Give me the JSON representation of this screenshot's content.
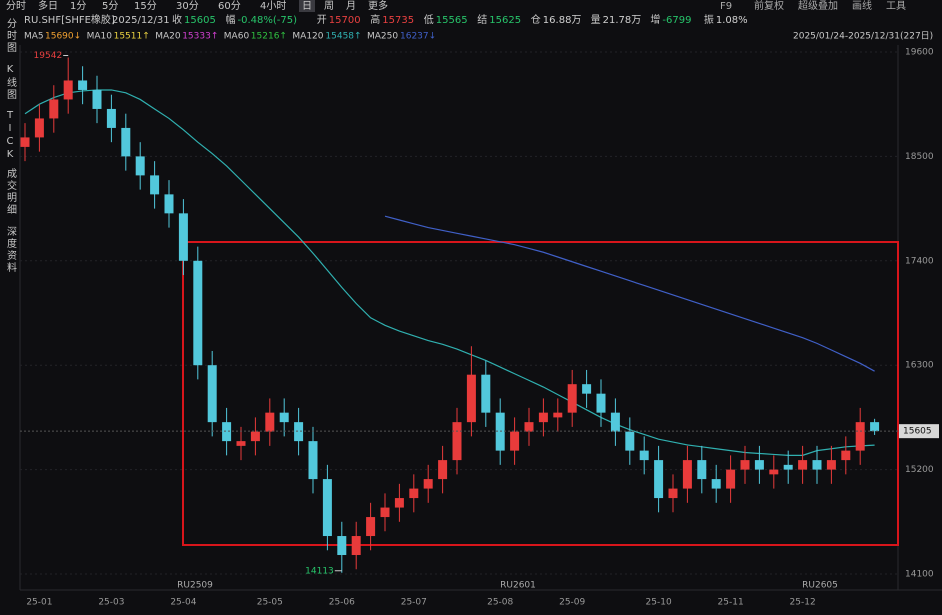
{
  "tabs": [
    "分时",
    "多日",
    "1分",
    "5分",
    "15分",
    "30分",
    "60分",
    "4小时",
    "日",
    "周",
    "月",
    "更多"
  ],
  "toolbar": [
    "F9",
    "前复权",
    "超级叠加",
    "画线",
    "工具"
  ],
  "sidebar": [
    "分时图",
    "K线图",
    "TICK",
    "成交明细",
    "深度资料"
  ],
  "header": {
    "symbol": "RU.SHF[SHFE橡胶]",
    "date": "2025/12/31",
    "quotes": [
      {
        "label": "收",
        "value": "15605",
        "color": "#27c46a"
      },
      {
        "label": "幅",
        "value": "-0.48%(-75)",
        "color": "#27c46a"
      },
      {
        "label": "开",
        "value": "15700",
        "color": "#e84040"
      },
      {
        "label": "高",
        "value": "15735",
        "color": "#e84040"
      },
      {
        "label": "低",
        "value": "15565",
        "color": "#27c46a"
      },
      {
        "label": "结",
        "value": "15625",
        "color": "#27c46a"
      },
      {
        "label": "仓",
        "value": "16.88万",
        "color": "#d0d0d0"
      },
      {
        "label": "量",
        "value": "21.78万",
        "color": "#d0d0d0"
      },
      {
        "label": "增",
        "value": "-6799",
        "color": "#27c46a"
      },
      {
        "label": "振",
        "value": "1.08%",
        "color": "#d0d0d0"
      }
    ]
  },
  "range_label": "2025/01/24-2025/12/31(227日)",
  "contracts": [
    "RU2509",
    "RU2601",
    "RU2605"
  ],
  "chart_data": {
    "type": "candlestick",
    "categories": [
      null,
      "25-01",
      null,
      null,
      null,
      null,
      "25-03",
      null,
      null,
      null,
      null,
      "25-04",
      null,
      null,
      null,
      null,
      null,
      "25-05",
      null,
      null,
      null,
      null,
      "25-06",
      null,
      null,
      null,
      null,
      "25-07",
      null,
      null,
      null,
      null,
      null,
      "25-08",
      null,
      null,
      null,
      null,
      "25-09",
      null,
      null,
      null,
      null,
      null,
      "25-10",
      null,
      null,
      null,
      null,
      "25-11",
      null,
      null,
      null,
      null,
      "25-12",
      null,
      null,
      null,
      null,
      null
    ],
    "open": [
      18600,
      18700,
      18900,
      19100,
      19300,
      19200,
      19000,
      18800,
      18500,
      18300,
      18100,
      17900,
      17400,
      16300,
      15700,
      15450,
      15500,
      15600,
      15800,
      15700,
      15500,
      15100,
      14500,
      14300,
      14500,
      14700,
      14800,
      14900,
      15000,
      15100,
      15300,
      15700,
      16200,
      15800,
      15400,
      15600,
      15700,
      15750,
      15800,
      16100,
      16000,
      15800,
      15600,
      15400,
      15300,
      14900,
      15000,
      15300,
      15100,
      15000,
      15200,
      15300,
      15150,
      15250,
      15200,
      15300,
      15200,
      15300,
      15400,
      15700
    ],
    "high": [
      18850,
      19050,
      19250,
      19542,
      19450,
      19350,
      19150,
      18950,
      18650,
      18450,
      18250,
      18050,
      17550,
      16450,
      15850,
      15650,
      15750,
      15950,
      15950,
      15850,
      15650,
      15250,
      14650,
      14650,
      14850,
      14950,
      15050,
      15150,
      15250,
      15450,
      15850,
      16500,
      16350,
      15950,
      15750,
      15850,
      15950,
      15950,
      16250,
      16250,
      16150,
      15950,
      15750,
      15550,
      15450,
      15150,
      15450,
      15450,
      15250,
      15350,
      15450,
      15450,
      15350,
      15400,
      15450,
      15450,
      15450,
      15550,
      15850,
      15735
    ],
    "low": [
      18450,
      18550,
      18750,
      18950,
      19050,
      18850,
      18650,
      18350,
      18150,
      17950,
      17750,
      17250,
      16150,
      15550,
      15350,
      15300,
      15350,
      15450,
      15550,
      15350,
      14950,
      14350,
      14113,
      14150,
      14350,
      14550,
      14650,
      14750,
      14850,
      14950,
      15150,
      15550,
      15650,
      15250,
      15250,
      15450,
      15550,
      15600,
      15650,
      15850,
      15650,
      15450,
      15250,
      15150,
      14750,
      14750,
      14850,
      14950,
      14850,
      14850,
      15050,
      15050,
      15000,
      15050,
      15050,
      15050,
      15050,
      15150,
      15250,
      15565
    ],
    "close": [
      18700,
      18900,
      19100,
      19300,
      19200,
      19000,
      18800,
      18500,
      18300,
      18100,
      17900,
      17400,
      16300,
      15700,
      15500,
      15500,
      15600,
      15800,
      15700,
      15500,
      15100,
      14500,
      14300,
      14500,
      14700,
      14800,
      14900,
      15000,
      15100,
      15300,
      15700,
      16200,
      15800,
      15400,
      15600,
      15700,
      15800,
      15800,
      16100,
      16000,
      15800,
      15600,
      15400,
      15300,
      14900,
      15000,
      15300,
      15100,
      15000,
      15200,
      15300,
      15200,
      15200,
      15200,
      15300,
      15200,
      15300,
      15400,
      15700,
      15605
    ],
    "up_color": "#e83b3b",
    "down_color": "#52c8dc",
    "series": [
      {
        "name": "MA5",
        "last": "15690↓",
        "color": "#f0a030"
      },
      {
        "name": "MA10",
        "last": "15511↑",
        "color": "#e8d040"
      },
      {
        "name": "MA20",
        "last": "15333↑",
        "color": "#d040d0"
      },
      {
        "name": "MA60",
        "last": "15216↑",
        "color": "#30c040"
      },
      {
        "name": "MA120",
        "last": "15458↑",
        "color": "#30b0b0",
        "values": [
          18950,
          19050,
          19120,
          19170,
          19190,
          19200,
          19200,
          19170,
          19100,
          19000,
          18900,
          18780,
          18650,
          18530,
          18400,
          18250,
          18100,
          17950,
          17800,
          17650,
          17480,
          17300,
          17120,
          16950,
          16800,
          16720,
          16660,
          16610,
          16560,
          16520,
          16470,
          16410,
          16350,
          16280,
          16210,
          16140,
          16070,
          15990,
          15910,
          15830,
          15750,
          15680,
          15620,
          15570,
          15520,
          15490,
          15460,
          15440,
          15420,
          15400,
          15380,
          15370,
          15360,
          15350,
          15350,
          15400,
          15420,
          15440,
          15450,
          15458
        ]
      },
      {
        "name": "MA250",
        "last": "16237↓",
        "color": "#4060c8",
        "values": [
          null,
          null,
          null,
          null,
          null,
          null,
          null,
          null,
          null,
          null,
          null,
          null,
          null,
          null,
          null,
          null,
          null,
          null,
          null,
          null,
          null,
          null,
          null,
          null,
          null,
          17870,
          17830,
          17790,
          17750,
          17720,
          17690,
          17660,
          17630,
          17600,
          17570,
          17530,
          17490,
          17440,
          17390,
          17340,
          17290,
          17240,
          17190,
          17140,
          17090,
          17040,
          16990,
          16940,
          16890,
          16840,
          16790,
          16740,
          16690,
          16640,
          16590,
          16530,
          16460,
          16390,
          16320,
          16237
        ]
      }
    ],
    "ylim": [
      14100,
      19600
    ],
    "yticks": [
      14100,
      15200,
      16300,
      17400,
      18500,
      19600
    ],
    "grid": true
  }
}
